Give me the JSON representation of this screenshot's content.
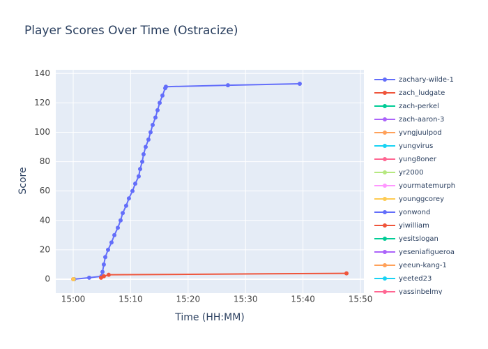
{
  "chart_data": {
    "type": "line",
    "title": "Player Scores Over Time (Ostracize)",
    "x_label": "Time (HH:MM)",
    "y_label": "Score",
    "xlim": [
      "14:56:58",
      "15:50:36"
    ],
    "ylim": [
      -9.5,
      142.5
    ],
    "xticks": [
      "15:00",
      "15:10",
      "15:20",
      "15:30",
      "15:40",
      "15:50"
    ],
    "yticks": [
      0,
      20,
      40,
      60,
      80,
      100,
      120,
      140
    ],
    "grid": true,
    "legend": "right",
    "series": [
      {
        "name": "zachary-wilde-1",
        "color": "#636efa",
        "x": [
          "15:00:10",
          "15:02:47",
          "15:04:55",
          "15:05:06",
          "15:05:20",
          "15:05:35",
          "15:06:04",
          "15:06:40",
          "15:07:10",
          "15:07:46",
          "15:08:15",
          "15:08:37",
          "15:09:13",
          "15:09:42",
          "15:10:19",
          "15:10:48",
          "15:11:24",
          "15:11:39",
          "15:12:01",
          "15:12:15",
          "15:12:37",
          "15:13:06",
          "15:13:28",
          "15:13:50",
          "15:14:19",
          "15:14:41",
          "15:15:03",
          "15:15:32",
          "15:16:01",
          "15:16:08",
          "15:26:56",
          "15:39:26"
        ],
        "values": [
          0,
          1,
          2,
          5,
          10,
          15,
          20,
          25,
          30,
          35,
          40,
          45,
          50,
          55,
          60,
          65,
          70,
          75,
          80,
          85,
          90,
          95,
          100,
          105,
          110,
          115,
          120,
          125,
          130,
          131,
          132,
          133
        ]
      },
      {
        "name": "zach_ludgate",
        "color": "#EF553B",
        "x": [
          "15:04:51",
          "15:05:20",
          "15:06:11",
          "15:47:34"
        ],
        "values": [
          1,
          2,
          3,
          4
        ]
      },
      {
        "name": "zach-perkel",
        "color": "#00cc96",
        "x": [],
        "values": []
      },
      {
        "name": "zach-aaron-3",
        "color": "#ab63fa",
        "x": [],
        "values": []
      },
      {
        "name": "yvngjuulpod",
        "color": "#FFA15A",
        "x": [
          "15:00:00"
        ],
        "values": [
          0
        ]
      },
      {
        "name": "yungvirus",
        "color": "#19d3f3",
        "x": [],
        "values": []
      },
      {
        "name": "yung8oner",
        "color": "#FF6692",
        "x": [],
        "values": []
      },
      {
        "name": "yr2000",
        "color": "#B6E880",
        "x": [],
        "values": []
      },
      {
        "name": "yourmatemurph",
        "color": "#FF97FF",
        "x": [],
        "values": []
      },
      {
        "name": "younggcorey",
        "color": "#FECB52",
        "x": [
          "15:00:05"
        ],
        "values": [
          0
        ]
      },
      {
        "name": "yonwond",
        "color": "#636efa",
        "x": [],
        "values": []
      },
      {
        "name": "yiwilliam",
        "color": "#EF553B",
        "x": [],
        "values": []
      },
      {
        "name": "yesitslogan",
        "color": "#00cc96",
        "x": [],
        "values": []
      },
      {
        "name": "yeseniafigueroa",
        "color": "#ab63fa",
        "x": [],
        "values": []
      },
      {
        "name": "yeeun-kang-1",
        "color": "#FFA15A",
        "x": [],
        "values": []
      },
      {
        "name": "yeeted23",
        "color": "#19d3f3",
        "x": [],
        "values": []
      },
      {
        "name": "yassinbelmy",
        "color": "#FF6692",
        "x": [],
        "values": []
      }
    ]
  }
}
